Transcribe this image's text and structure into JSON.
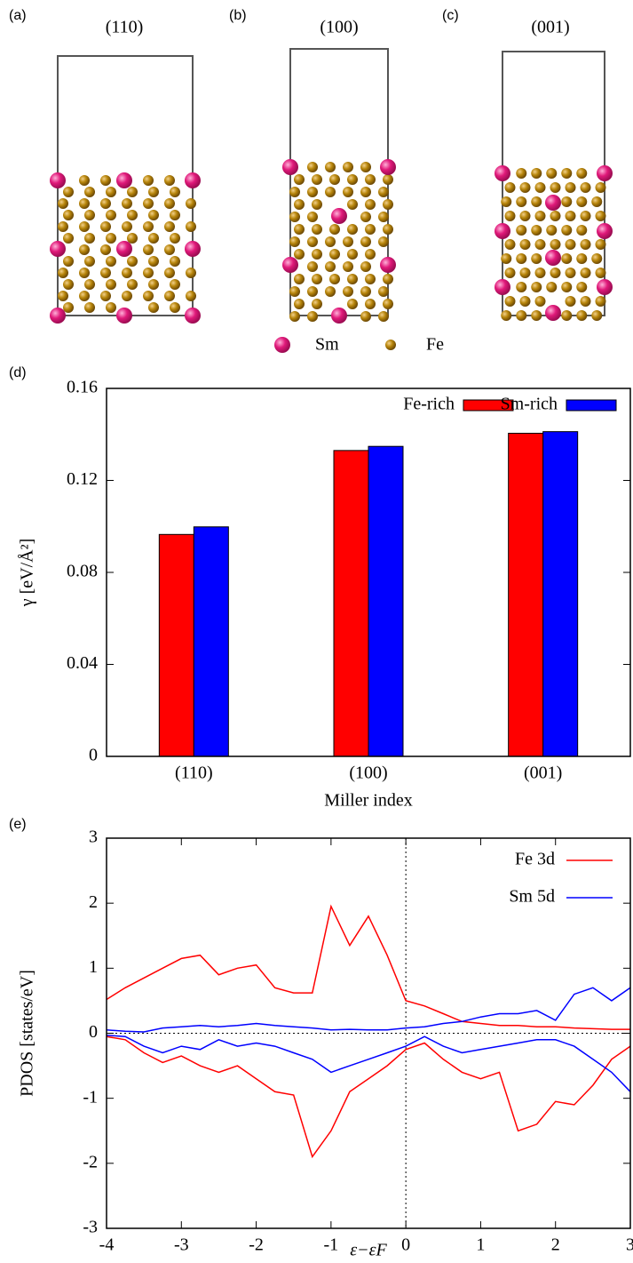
{
  "panels": [
    {
      "label": "(a)",
      "title": "(110)"
    },
    {
      "label": "(b)",
      "title": "(100)"
    },
    {
      "label": "(c)",
      "title": "(001)"
    }
  ],
  "legend": {
    "items": [
      "Sm",
      "Fe"
    ]
  },
  "chart_data": [
    {
      "type": "bar",
      "label": "(d)",
      "xlabel": "Miller index",
      "ylabel": "γ [eV/Å²]",
      "categories": [
        "(110)",
        "(100)",
        "(001)"
      ],
      "series": [
        {
          "name": "Fe-rich",
          "color": "#ff0000",
          "values": [
            0.0965,
            0.133,
            0.1405
          ]
        },
        {
          "name": "Sm-rich",
          "color": "#0000ff",
          "values": [
            0.0998,
            0.1348,
            0.1412
          ]
        }
      ],
      "ylim": [
        0,
        0.16
      ],
      "yticks": [
        0,
        0.04,
        0.08,
        0.12,
        0.16
      ]
    },
    {
      "type": "line",
      "label": "(e)",
      "xlabel": "ε−εF",
      "ylabel": "PDOS [states/eV]",
      "x": [
        -4,
        -3.75,
        -3.5,
        -3.25,
        -3,
        -2.75,
        -2.5,
        -2.25,
        -2,
        -1.75,
        -1.5,
        -1.25,
        -1,
        -0.75,
        -0.5,
        -0.25,
        0,
        0.25,
        0.5,
        0.75,
        1,
        1.25,
        1.5,
        1.75,
        2,
        2.25,
        2.5,
        2.75,
        3
      ],
      "series": [
        {
          "name": "Fe 3d",
          "color": "#ff0000",
          "values": [
            0.52,
            0.7,
            0.85,
            1.0,
            1.15,
            1.2,
            0.9,
            1.0,
            1.05,
            0.7,
            0.62,
            0.62,
            1.95,
            1.35,
            1.8,
            1.2,
            0.5,
            0.42,
            0.3,
            0.18,
            0.15,
            0.12,
            0.12,
            0.1,
            0.1,
            0.08,
            0.07,
            0.06,
            0.06
          ],
          "values_down": [
            -0.05,
            -0.1,
            -0.3,
            -0.45,
            -0.35,
            -0.5,
            -0.6,
            -0.5,
            -0.7,
            -0.9,
            -0.95,
            -1.9,
            -1.5,
            -0.9,
            -0.7,
            -0.5,
            -0.25,
            -0.15,
            -0.4,
            -0.6,
            -0.7,
            -0.6,
            -1.5,
            -1.4,
            -1.05,
            -1.1,
            -0.8,
            -0.4,
            -0.2
          ]
        },
        {
          "name": "Sm 5d",
          "color": "#0000ff",
          "values": [
            0.05,
            0.03,
            0.02,
            0.08,
            0.1,
            0.12,
            0.1,
            0.12,
            0.15,
            0.12,
            0.1,
            0.08,
            0.05,
            0.06,
            0.05,
            0.05,
            0.08,
            0.1,
            0.15,
            0.18,
            0.25,
            0.3,
            0.3,
            0.35,
            0.2,
            0.6,
            0.7,
            0.5,
            0.7
          ],
          "values_down": [
            -0.03,
            -0.05,
            -0.2,
            -0.3,
            -0.2,
            -0.25,
            -0.1,
            -0.2,
            -0.15,
            -0.2,
            -0.3,
            -0.4,
            -0.6,
            -0.5,
            -0.4,
            -0.3,
            -0.2,
            -0.05,
            -0.2,
            -0.3,
            -0.25,
            -0.2,
            -0.15,
            -0.1,
            -0.1,
            -0.2,
            -0.4,
            -0.6,
            -0.9
          ]
        }
      ],
      "xlim": [
        -4,
        3
      ],
      "xticks": [
        -4,
        -3,
        -2,
        -1,
        0,
        1,
        2,
        3
      ],
      "ylim": [
        -3,
        3
      ],
      "yticks": [
        -3,
        -2,
        -1,
        0,
        1,
        2,
        3
      ]
    }
  ]
}
